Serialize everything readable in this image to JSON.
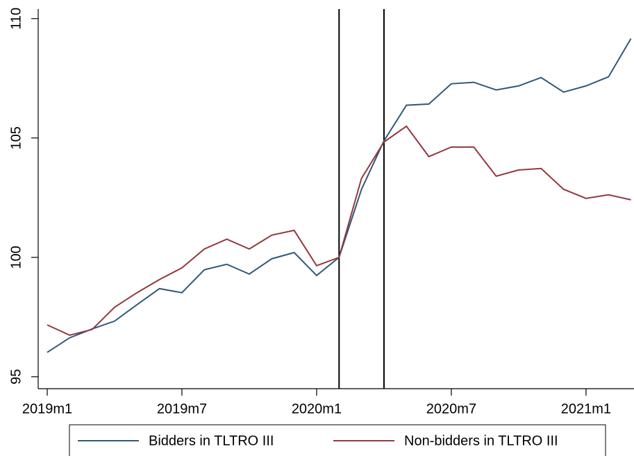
{
  "chart_data": {
    "type": "line",
    "categories": [
      "2019m1",
      null,
      null,
      null,
      null,
      null,
      "2019m7",
      null,
      null,
      null,
      null,
      null,
      "2020m1",
      null,
      null,
      null,
      null,
      null,
      "2020m7",
      null,
      null,
      null,
      null,
      null,
      "2021m1",
      null,
      null
    ],
    "series": [
      {
        "name": "Bidders in TLTRO III",
        "color": "#2f5878",
        "values": [
          96.02,
          96.63,
          97.0,
          97.33,
          98.02,
          98.69,
          98.52,
          99.48,
          99.71,
          99.3,
          99.94,
          100.2,
          99.24,
          100,
          102.85,
          104.88,
          106.37,
          106.42,
          107.27,
          107.33,
          107.01,
          107.18,
          107.53,
          106.92,
          107.18,
          107.56,
          109.16
        ]
      },
      {
        "name": "Non-bidders in TLTRO III",
        "color": "#93383f",
        "values": [
          97.17,
          96.74,
          96.98,
          97.91,
          98.52,
          99.07,
          99.56,
          100.35,
          100.76,
          100.35,
          100.93,
          101.13,
          99.65,
          100,
          103.31,
          104.83,
          105.49,
          104.22,
          104.62,
          104.62,
          103.4,
          103.66,
          103.72,
          102.85,
          102.47,
          102.62,
          102.41
        ]
      }
    ],
    "vertical_lines_at_category_index": [
      13,
      15
    ],
    "ylim": [
      94.5,
      110.4
    ],
    "yticks": [
      95,
      100,
      105,
      110
    ],
    "grid": false,
    "legend": "bottom"
  }
}
